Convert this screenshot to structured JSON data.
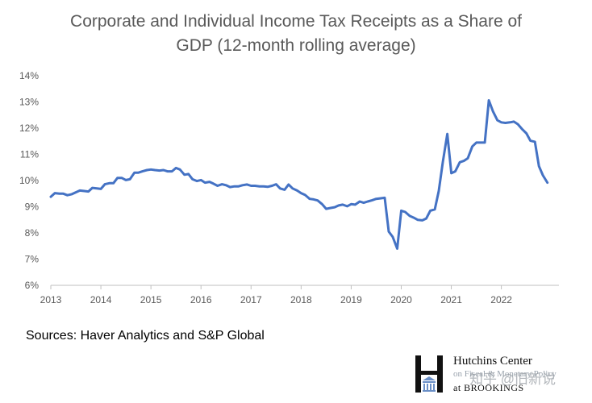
{
  "chart_data": {
    "type": "line",
    "title_lines": [
      "Corporate and Individual Income Tax Receipts as a Share of",
      "GDP (12-month rolling average)"
    ],
    "xlabel": "",
    "ylabel": "",
    "xlim": [
      2013,
      2023.15
    ],
    "ylim": [
      6,
      14
    ],
    "x_ticks": [
      2013,
      2014,
      2015,
      2016,
      2017,
      2018,
      2019,
      2020,
      2021,
      2022
    ],
    "y_ticks": [
      6,
      7,
      8,
      9,
      10,
      11,
      12,
      13,
      14
    ],
    "y_tick_labels": [
      "6%",
      "7%",
      "8%",
      "9%",
      "10%",
      "11%",
      "12%",
      "13%",
      "14%"
    ],
    "grid": false,
    "series": [
      {
        "name": "",
        "color": "#4472c4",
        "x": [
          2013.0,
          2013.08,
          2013.17,
          2013.25,
          2013.33,
          2013.42,
          2013.5,
          2013.58,
          2013.67,
          2013.75,
          2013.83,
          2013.92,
          2014.0,
          2014.08,
          2014.17,
          2014.25,
          2014.33,
          2014.42,
          2014.5,
          2014.58,
          2014.67,
          2014.75,
          2014.83,
          2014.92,
          2015.0,
          2015.08,
          2015.17,
          2015.25,
          2015.33,
          2015.42,
          2015.5,
          2015.58,
          2015.67,
          2015.75,
          2015.83,
          2015.92,
          2016.0,
          2016.08,
          2016.17,
          2016.25,
          2016.33,
          2016.42,
          2016.5,
          2016.58,
          2016.67,
          2016.75,
          2016.83,
          2016.92,
          2017.0,
          2017.08,
          2017.17,
          2017.25,
          2017.33,
          2017.42,
          2017.5,
          2017.58,
          2017.67,
          2017.75,
          2017.83,
          2017.92,
          2018.0,
          2018.08,
          2018.17,
          2018.25,
          2018.33,
          2018.42,
          2018.5,
          2018.58,
          2018.67,
          2018.75,
          2018.83,
          2018.92,
          2019.0,
          2019.08,
          2019.17,
          2019.25,
          2019.33,
          2019.42,
          2019.5,
          2019.58,
          2019.67,
          2019.75,
          2019.83,
          2019.92,
          2020.0,
          2020.08,
          2020.17,
          2020.25,
          2020.33,
          2020.42,
          2020.5,
          2020.58,
          2020.67,
          2020.75,
          2020.83,
          2020.92,
          2021.0,
          2021.08,
          2021.17,
          2021.25,
          2021.33,
          2021.42,
          2021.5,
          2021.58,
          2021.67,
          2021.75,
          2021.83,
          2021.92,
          2022.0,
          2022.08,
          2022.17,
          2022.25,
          2022.33,
          2022.42,
          2022.5,
          2022.58,
          2022.67,
          2022.75,
          2022.83,
          2022.92
        ],
        "values": [
          9.38,
          9.52,
          9.5,
          9.5,
          9.44,
          9.48,
          9.55,
          9.62,
          9.6,
          9.58,
          9.72,
          9.7,
          9.68,
          9.86,
          9.9,
          9.9,
          10.1,
          10.1,
          10.02,
          10.05,
          10.3,
          10.3,
          10.35,
          10.4,
          10.42,
          10.4,
          10.38,
          10.4,
          10.35,
          10.35,
          10.48,
          10.42,
          10.22,
          10.25,
          10.05,
          9.98,
          10.02,
          9.92,
          9.95,
          9.88,
          9.8,
          9.86,
          9.82,
          9.75,
          9.78,
          9.78,
          9.82,
          9.85,
          9.8,
          9.8,
          9.78,
          9.78,
          9.76,
          9.8,
          9.86,
          9.7,
          9.65,
          9.85,
          9.7,
          9.62,
          9.52,
          9.45,
          9.3,
          9.28,
          9.24,
          9.1,
          8.92,
          8.95,
          8.98,
          9.05,
          9.08,
          9.02,
          9.1,
          9.08,
          9.2,
          9.15,
          9.2,
          9.25,
          9.3,
          9.32,
          9.34,
          8.05,
          7.85,
          7.4,
          8.85,
          8.8,
          8.65,
          8.58,
          8.5,
          8.48,
          8.55,
          8.85,
          8.9,
          9.6,
          10.7,
          11.78,
          10.28,
          10.35,
          10.7,
          10.75,
          10.85,
          11.3,
          11.45,
          11.45,
          11.45,
          13.06,
          12.65,
          12.3,
          12.22,
          12.2,
          12.22,
          12.25,
          12.15,
          11.95,
          11.8,
          11.52,
          11.48,
          10.55,
          10.2,
          9.92
        ]
      }
    ],
    "source": "Sources: Haver Analytics and S&P Global"
  },
  "logo": {
    "line1": "Hutchins Center",
    "line2": "on Fiscal & Monetary Policy",
    "line3": "at BROOKINGS"
  },
  "watermark": "知乎 @旧新说"
}
